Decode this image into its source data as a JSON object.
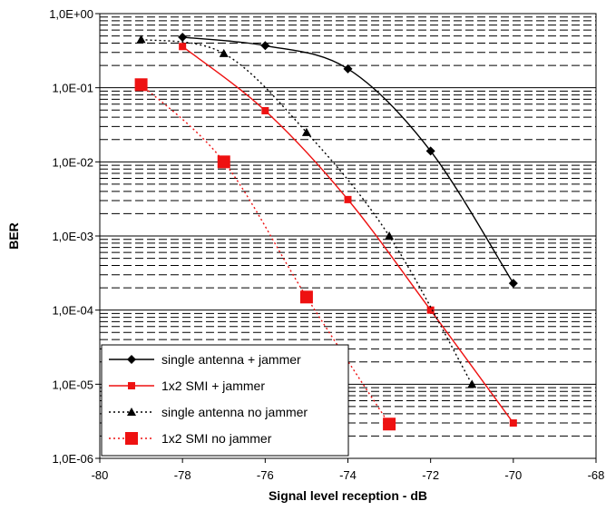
{
  "chart_data": {
    "type": "line",
    "xlabel": "Signal level reception - dB",
    "ylabel": "BER",
    "xlim": [
      -80,
      -68
    ],
    "ylim": [
      1e-06,
      1
    ],
    "yscale": "log",
    "x_ticks": [
      -80,
      -78,
      -76,
      -74,
      -72,
      -70,
      -68
    ],
    "x_tick_labels": [
      "-80",
      "-78",
      "-76",
      "-74",
      "-72",
      "-70",
      "-68"
    ],
    "y_ticks": [
      1,
      0.1,
      0.01,
      0.001,
      0.0001,
      1e-05,
      1e-06
    ],
    "y_tick_labels": [
      "1,0E+00",
      "1,0E-01",
      "1,0E-02",
      "1,0E-03",
      "1,0E-04",
      "1,0E-05",
      "1,0E-06"
    ],
    "grid": "dashed minor + solid major horizontal",
    "legend_position": "bottom-left",
    "series": [
      {
        "name": "single antenna + jammer",
        "color": "#000000",
        "line": "solid",
        "marker": "diamond",
        "x": [
          -78,
          -76,
          -74,
          -72,
          -70
        ],
        "y": [
          0.48,
          0.37,
          0.18,
          0.014,
          0.00023
        ]
      },
      {
        "name": "1x2 SMI + jammer",
        "color": "#ee1111",
        "line": "solid",
        "marker": "small-square",
        "x": [
          -78,
          -76,
          -74,
          -72,
          -70
        ],
        "y": [
          0.36,
          0.049,
          0.0031,
          0.0001,
          3e-06
        ]
      },
      {
        "name": "single antenna no jammer",
        "color": "#000000",
        "line": "dotted",
        "marker": "triangle",
        "x": [
          -79,
          -77,
          -75,
          -73,
          -71
        ],
        "y": [
          0.45,
          0.29,
          0.025,
          0.001,
          1e-05
        ]
      },
      {
        "name": "1x2 SMI no jammer",
        "color": "#ee1111",
        "line": "dotted",
        "marker": "large-square",
        "x": [
          -79,
          -77,
          -75,
          -73
        ],
        "y": [
          0.11,
          0.01,
          0.00015,
          2.9e-06
        ]
      }
    ]
  }
}
